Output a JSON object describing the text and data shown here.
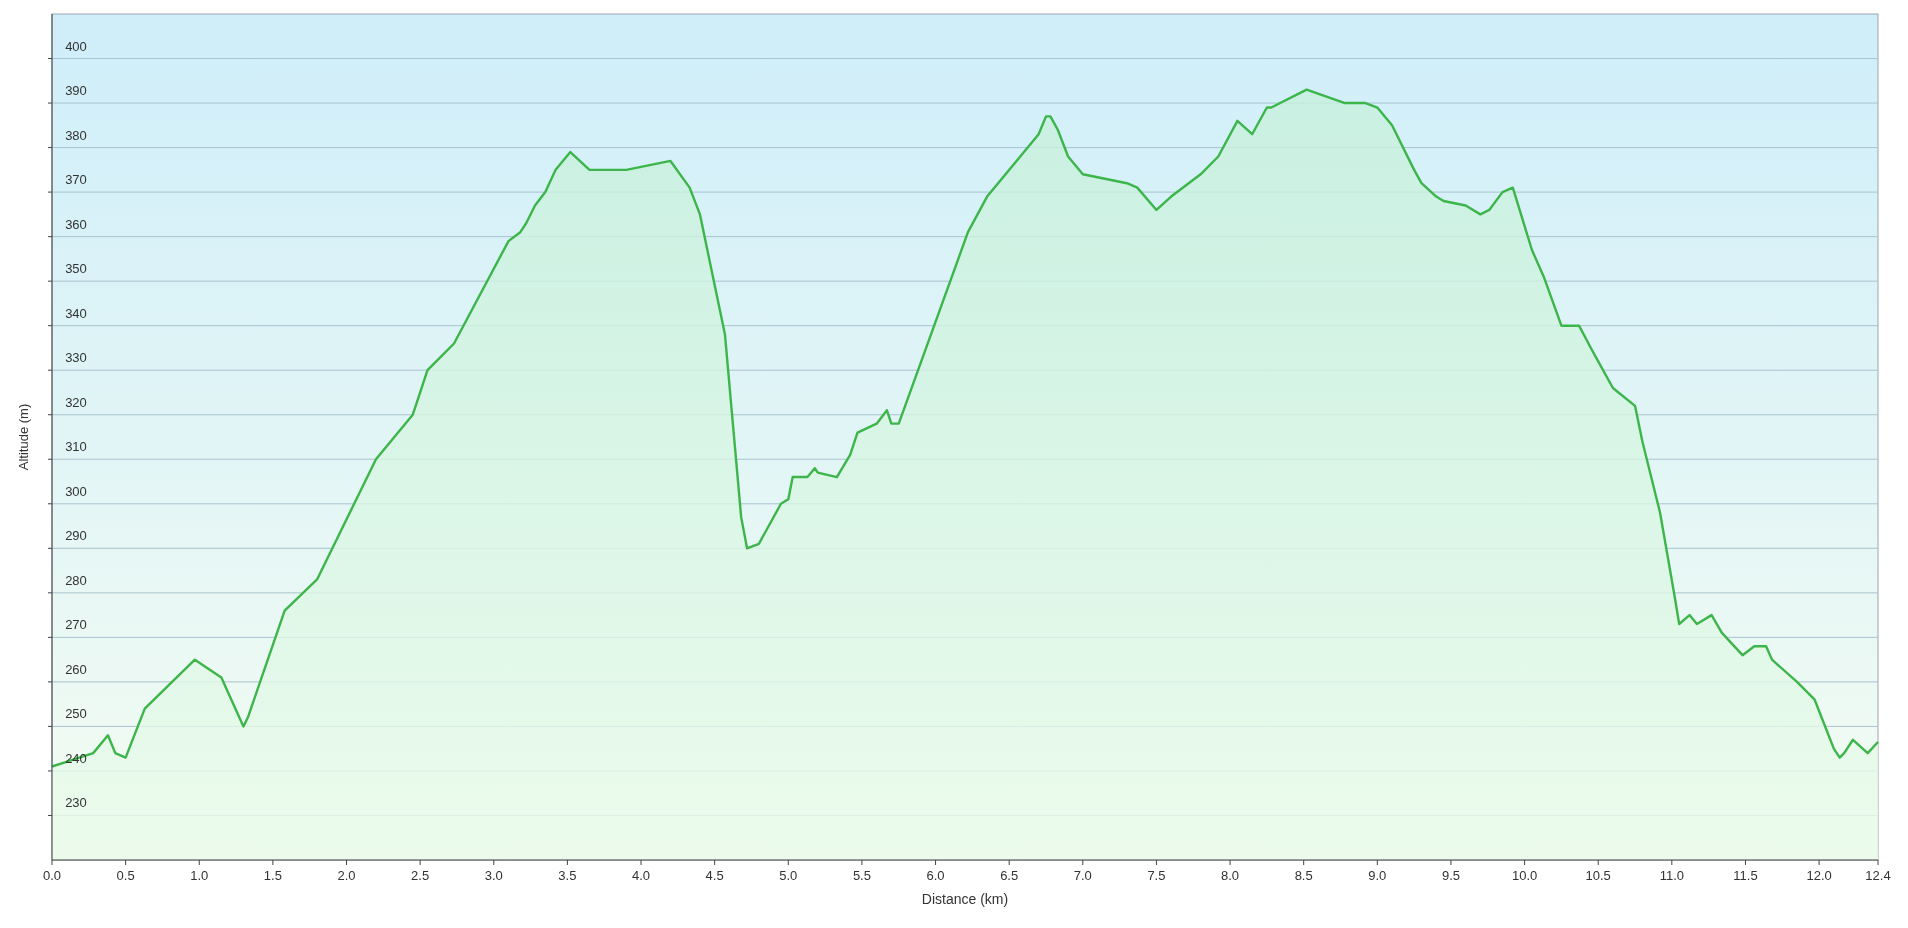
{
  "chart_data": {
    "type": "area",
    "xlabel": "Distance  (km)",
    "ylabel": "Altitude (m)",
    "color": "#3cb54a",
    "grid": "y",
    "xlim": [
      0,
      12.4
    ],
    "ylim": [
      220,
      410
    ],
    "xticks": [
      {
        "value": 0,
        "label": "0.0"
      },
      0.5,
      {
        "value": 1,
        "label": "1.0"
      },
      1.5,
      {
        "value": 2,
        "label": "2.0"
      },
      2.5,
      {
        "value": 3,
        "label": "3.0"
      },
      3.5,
      {
        "value": 4,
        "label": "4.0"
      },
      4.5,
      {
        "value": 5,
        "label": "5.0"
      },
      5.5,
      {
        "value": 6,
        "label": "6.0"
      },
      6.5,
      {
        "value": 7,
        "label": "7.0"
      },
      7.5,
      {
        "value": 8,
        "label": "8.0"
      },
      8.5,
      {
        "value": 9,
        "label": "9.0"
      },
      9.5,
      {
        "value": 10,
        "label": "10.0"
      },
      10.5,
      {
        "value": 11,
        "label": "11.0"
      },
      11.5,
      {
        "value": 12,
        "label": "12.0"
      },
      12.4
    ],
    "yticks": [
      230,
      240,
      250,
      260,
      270,
      280,
      290,
      300,
      310,
      320,
      330,
      340,
      350,
      360,
      370,
      380,
      390,
      400
    ],
    "x": [
      0,
      0.28,
      0.38,
      0.43,
      0.5,
      0.63,
      0.97,
      1.15,
      1.3,
      1.33,
      1.58,
      1.8,
      2.2,
      2.35,
      2.45,
      2.55,
      2.73,
      3.1,
      3.18,
      3.22,
      3.28,
      3.35,
      3.42,
      3.52,
      3.65,
      3.9,
      4.2,
      4.33,
      4.4,
      4.57,
      4.68,
      4.72,
      4.8,
      4.95,
      5.0,
      5.03,
      5.13,
      5.18,
      5.2,
      5.33,
      5.42,
      5.47,
      5.6,
      5.67,
      5.7,
      5.75,
      6.22,
      6.35,
      6.55,
      6.7,
      6.75,
      6.78,
      6.83,
      6.9,
      7.0,
      7.15,
      7.3,
      7.37,
      7.5,
      7.6,
      7.8,
      7.92,
      8.05,
      8.15,
      8.25,
      8.28,
      8.52,
      8.78,
      8.92,
      9.0,
      9.1,
      9.25,
      9.3,
      9.4,
      9.45,
      9.6,
      9.7,
      9.76,
      9.85,
      9.92,
      10.05,
      10.13,
      10.25,
      10.37,
      10.45,
      10.5,
      10.6,
      10.75,
      10.8,
      10.92,
      11.02,
      11.05,
      11.12,
      11.17,
      11.27,
      11.34,
      11.48,
      11.56,
      11.64,
      11.68,
      11.85,
      11.97,
      12.1,
      12.14,
      12.17,
      12.23,
      12.33,
      12.4
    ],
    "values": [
      241,
      244,
      248,
      244,
      243,
      254,
      265,
      261,
      250,
      252,
      276,
      283,
      310,
      316,
      320,
      330,
      336,
      359,
      361,
      363,
      367,
      370,
      375,
      379,
      375,
      375,
      377,
      371,
      365,
      338,
      297,
      290,
      291,
      300,
      301,
      306,
      306,
      308,
      307,
      306,
      311,
      316,
      318,
      321,
      318,
      318,
      361,
      369,
      377,
      383,
      387,
      387,
      384,
      378,
      374,
      373,
      372,
      371,
      366,
      369,
      374,
      378,
      386,
      383,
      389,
      389,
      393,
      390,
      390,
      389,
      385,
      375,
      372,
      369,
      368,
      367,
      365,
      366,
      370,
      371,
      357,
      351,
      340,
      340,
      335,
      332,
      326,
      322,
      314,
      298,
      279,
      273,
      275,
      273,
      275,
      271,
      266,
      268,
      268,
      265,
      260,
      256,
      245,
      243,
      244,
      247,
      244,
      246.5
    ]
  }
}
